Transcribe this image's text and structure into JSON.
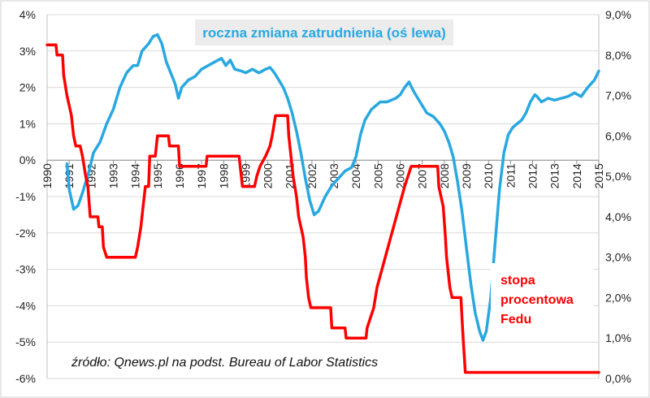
{
  "chart_data": {
    "type": "line",
    "annotations": {
      "employment_label": "roczna zmiana zatrudnienia (oś lewa)",
      "fed_label_lines": [
        "stopa",
        "procentowa",
        "Fedu"
      ],
      "source": "źródło: Qnews.pl na podst. Bureau of Labor Statistics"
    },
    "left_axis": {
      "min": -6,
      "max": 4,
      "ticks": [
        4,
        3,
        2,
        1,
        0,
        -1,
        -2,
        -3,
        -4,
        -5,
        -6
      ],
      "tick_labels": [
        "4%",
        "3%",
        "2%",
        "1%",
        "0%",
        "-1%",
        "-2%",
        "-3%",
        "-4%",
        "-5%",
        "-6%"
      ]
    },
    "right_axis": {
      "min": 0,
      "max": 9,
      "ticks": [
        9,
        8,
        7,
        6,
        5,
        4,
        3,
        2,
        1,
        0
      ],
      "tick_labels": [
        "9,0%",
        "8,0%",
        "7,0%",
        "6,0%",
        "5,0%",
        "4,0%",
        "3,0%",
        "2,0%",
        "1,0%",
        "0,0%"
      ]
    },
    "x_axis": {
      "min": 1990,
      "max": 2015,
      "tick_labels": [
        "1990",
        "1991",
        "1992",
        "1993",
        "1994",
        "1995",
        "1996",
        "1997",
        "1998",
        "1999",
        "2000",
        "2001",
        "2002",
        "2003",
        "2004",
        "2005",
        "2006",
        "2007",
        "2008",
        "2009",
        "2010",
        "2011",
        "2012",
        "2013",
        "2014",
        "2015"
      ]
    },
    "grid": true,
    "series": [
      {
        "axis": "left",
        "color": "#29a8e0",
        "points": [
          [
            1990.9,
            -0.1
          ],
          [
            1991.0,
            -0.8
          ],
          [
            1991.2,
            -1.35
          ],
          [
            1991.4,
            -1.25
          ],
          [
            1991.6,
            -0.9
          ],
          [
            1991.9,
            -0.3
          ],
          [
            1992.1,
            0.2
          ],
          [
            1992.4,
            0.5
          ],
          [
            1992.7,
            1.0
          ],
          [
            1993.0,
            1.4
          ],
          [
            1993.3,
            2.0
          ],
          [
            1993.6,
            2.4
          ],
          [
            1993.9,
            2.6
          ],
          [
            1994.1,
            2.6
          ],
          [
            1994.3,
            3.0
          ],
          [
            1994.6,
            3.2
          ],
          [
            1994.8,
            3.4
          ],
          [
            1995.0,
            3.45
          ],
          [
            1995.2,
            3.2
          ],
          [
            1995.4,
            2.7
          ],
          [
            1995.6,
            2.4
          ],
          [
            1995.8,
            2.1
          ],
          [
            1995.95,
            1.7
          ],
          [
            1996.1,
            2.0
          ],
          [
            1996.4,
            2.2
          ],
          [
            1996.7,
            2.3
          ],
          [
            1997.0,
            2.5
          ],
          [
            1997.3,
            2.6
          ],
          [
            1997.6,
            2.7
          ],
          [
            1997.9,
            2.8
          ],
          [
            1998.1,
            2.6
          ],
          [
            1998.3,
            2.75
          ],
          [
            1998.5,
            2.5
          ],
          [
            1998.8,
            2.45
          ],
          [
            1999.0,
            2.4
          ],
          [
            1999.3,
            2.5
          ],
          [
            1999.6,
            2.4
          ],
          [
            1999.9,
            2.5
          ],
          [
            2000.1,
            2.55
          ],
          [
            2000.3,
            2.4
          ],
          [
            2000.5,
            2.2
          ],
          [
            2000.7,
            2.0
          ],
          [
            2000.9,
            1.7
          ],
          [
            2001.1,
            1.3
          ],
          [
            2001.3,
            0.8
          ],
          [
            2001.5,
            0.2
          ],
          [
            2001.7,
            -0.5
          ],
          [
            2001.9,
            -1.1
          ],
          [
            2002.1,
            -1.5
          ],
          [
            2002.3,
            -1.4
          ],
          [
            2002.6,
            -1.0
          ],
          [
            2002.9,
            -0.7
          ],
          [
            2003.2,
            -0.5
          ],
          [
            2003.5,
            -0.3
          ],
          [
            2003.8,
            -0.2
          ],
          [
            2004.0,
            0.1
          ],
          [
            2004.2,
            0.7
          ],
          [
            2004.4,
            1.1
          ],
          [
            2004.7,
            1.4
          ],
          [
            2004.9,
            1.5
          ],
          [
            2005.1,
            1.6
          ],
          [
            2005.4,
            1.6
          ],
          [
            2005.6,
            1.65
          ],
          [
            2005.8,
            1.7
          ],
          [
            2006.0,
            1.8
          ],
          [
            2006.2,
            2.0
          ],
          [
            2006.4,
            2.15
          ],
          [
            2006.6,
            1.9
          ],
          [
            2006.9,
            1.6
          ],
          [
            2007.2,
            1.3
          ],
          [
            2007.5,
            1.2
          ],
          [
            2007.8,
            1.0
          ],
          [
            2008.0,
            0.8
          ],
          [
            2008.2,
            0.5
          ],
          [
            2008.4,
            0.1
          ],
          [
            2008.6,
            -0.6
          ],
          [
            2008.8,
            -1.4
          ],
          [
            2009.0,
            -2.4
          ],
          [
            2009.2,
            -3.4
          ],
          [
            2009.4,
            -4.2
          ],
          [
            2009.6,
            -4.7
          ],
          [
            2009.75,
            -4.95
          ],
          [
            2009.9,
            -4.7
          ],
          [
            2010.1,
            -3.8
          ],
          [
            2010.3,
            -2.3
          ],
          [
            2010.5,
            -0.8
          ],
          [
            2010.7,
            0.2
          ],
          [
            2010.9,
            0.7
          ],
          [
            2011.1,
            0.9
          ],
          [
            2011.3,
            1.0
          ],
          [
            2011.5,
            1.1
          ],
          [
            2011.7,
            1.3
          ],
          [
            2011.9,
            1.6
          ],
          [
            2012.1,
            1.8
          ],
          [
            2012.2,
            1.75
          ],
          [
            2012.4,
            1.6
          ],
          [
            2012.7,
            1.7
          ],
          [
            2013.0,
            1.65
          ],
          [
            2013.3,
            1.7
          ],
          [
            2013.6,
            1.75
          ],
          [
            2013.9,
            1.85
          ],
          [
            2014.2,
            1.75
          ],
          [
            2014.5,
            2.0
          ],
          [
            2014.8,
            2.2
          ],
          [
            2015.0,
            2.45
          ]
        ]
      },
      {
        "axis": "right",
        "color": "#ff0000",
        "points": [
          [
            1990.0,
            8.25
          ],
          [
            1990.4,
            8.25
          ],
          [
            1990.45,
            8.0
          ],
          [
            1990.7,
            8.0
          ],
          [
            1990.75,
            7.5
          ],
          [
            1990.9,
            7.0
          ],
          [
            1991.0,
            6.75
          ],
          [
            1991.1,
            6.5
          ],
          [
            1991.2,
            6.0
          ],
          [
            1991.3,
            5.75
          ],
          [
            1991.5,
            5.75
          ],
          [
            1991.6,
            5.5
          ],
          [
            1991.75,
            5.0
          ],
          [
            1991.85,
            4.75
          ],
          [
            1991.95,
            4.0
          ],
          [
            1992.0,
            4.0
          ],
          [
            1992.3,
            4.0
          ],
          [
            1992.35,
            3.75
          ],
          [
            1992.5,
            3.75
          ],
          [
            1992.55,
            3.25
          ],
          [
            1992.7,
            3.0
          ],
          [
            1994.0,
            3.0
          ],
          [
            1994.1,
            3.25
          ],
          [
            1994.25,
            3.75
          ],
          [
            1994.35,
            4.25
          ],
          [
            1994.45,
            4.75
          ],
          [
            1994.6,
            4.75
          ],
          [
            1994.65,
            5.5
          ],
          [
            1994.9,
            5.5
          ],
          [
            1995.0,
            6.0
          ],
          [
            1995.5,
            6.0
          ],
          [
            1995.55,
            5.75
          ],
          [
            1995.95,
            5.75
          ],
          [
            1996.0,
            5.25
          ],
          [
            1997.2,
            5.25
          ],
          [
            1997.25,
            5.5
          ],
          [
            1998.7,
            5.5
          ],
          [
            1998.75,
            5.25
          ],
          [
            1998.85,
            4.75
          ],
          [
            1999.4,
            4.75
          ],
          [
            1999.5,
            5.0
          ],
          [
            1999.65,
            5.25
          ],
          [
            1999.9,
            5.5
          ],
          [
            2000.1,
            5.75
          ],
          [
            2000.2,
            6.0
          ],
          [
            2000.35,
            6.5
          ],
          [
            2000.9,
            6.5
          ],
          [
            2000.95,
            6.0
          ],
          [
            2001.05,
            5.5
          ],
          [
            2001.15,
            5.0
          ],
          [
            2001.3,
            4.5
          ],
          [
            2001.4,
            4.0
          ],
          [
            2001.5,
            3.75
          ],
          [
            2001.6,
            3.5
          ],
          [
            2001.7,
            3.0
          ],
          [
            2001.75,
            2.5
          ],
          [
            2001.85,
            2.0
          ],
          [
            2001.95,
            1.75
          ],
          [
            2002.85,
            1.75
          ],
          [
            2002.9,
            1.25
          ],
          [
            2003.5,
            1.25
          ],
          [
            2003.55,
            1.0
          ],
          [
            2004.45,
            1.0
          ],
          [
            2004.5,
            1.25
          ],
          [
            2004.65,
            1.5
          ],
          [
            2004.8,
            1.75
          ],
          [
            2004.95,
            2.25
          ],
          [
            2005.2,
            2.75
          ],
          [
            2005.45,
            3.25
          ],
          [
            2005.7,
            3.75
          ],
          [
            2005.95,
            4.25
          ],
          [
            2006.2,
            4.75
          ],
          [
            2006.5,
            5.25
          ],
          [
            2007.7,
            5.25
          ],
          [
            2007.75,
            4.75
          ],
          [
            2007.85,
            4.5
          ],
          [
            2007.95,
            4.25
          ],
          [
            2008.05,
            3.5
          ],
          [
            2008.1,
            3.0
          ],
          [
            2008.25,
            2.25
          ],
          [
            2008.35,
            2.0
          ],
          [
            2008.75,
            2.0
          ],
          [
            2008.8,
            1.5
          ],
          [
            2008.85,
            1.0
          ],
          [
            2008.95,
            0.15
          ],
          [
            2015.0,
            0.15
          ]
        ]
      }
    ]
  }
}
